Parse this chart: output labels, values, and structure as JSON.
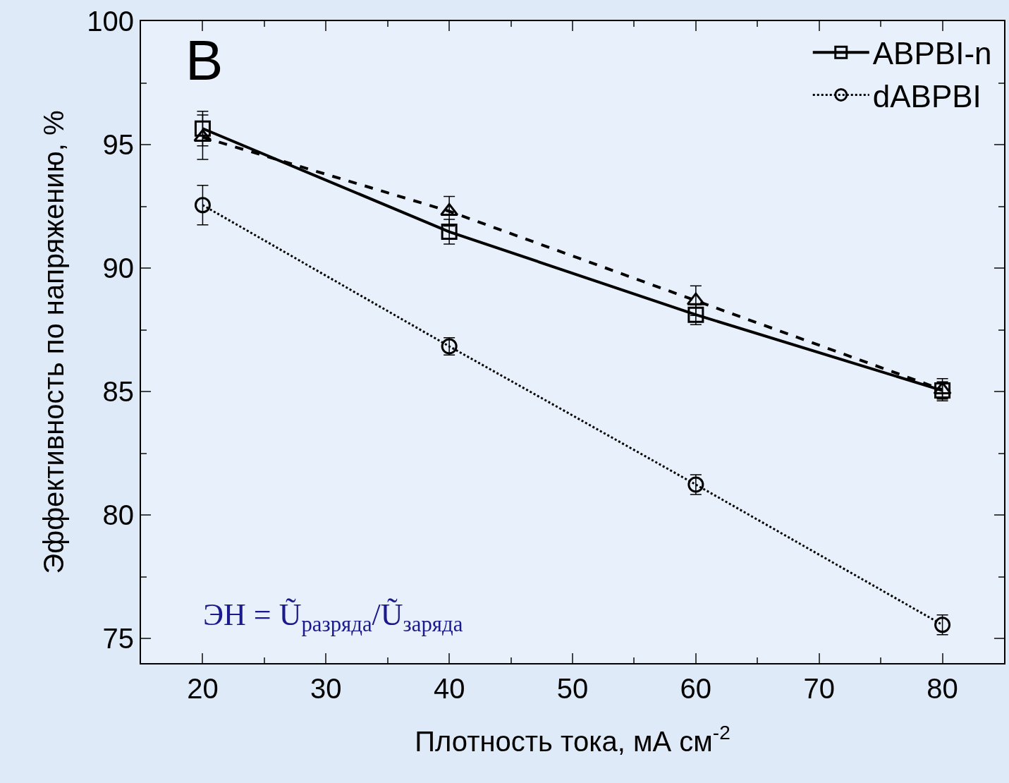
{
  "chart_data": {
    "type": "line",
    "xlabel": "Плотность тока, мА см$^{-2}$",
    "ylabel": "Эффективность по напряжению, %",
    "x": [
      20,
      40,
      60,
      80
    ],
    "series": [
      {
        "name": "ABPBI-n",
        "color": "#000000",
        "values": [
          95.65,
          91.47,
          88.11,
          85.04
        ],
        "errors": [
          0.7,
          0.5,
          0.4,
          0.35
        ],
        "marker": "square",
        "line_style": "solid"
      },
      {
        "name": "dABPBI",
        "color": "#000000",
        "values": [
          92.55,
          86.83,
          81.23,
          75.55
        ],
        "errors": [
          0.8,
          0.35,
          0.4,
          0.4
        ],
        "marker": "circle",
        "line_style": "dotted"
      },
      {
        "color": "#000000",
        "values": [
          95.3,
          92.3,
          88.68,
          85.07
        ],
        "errors": [
          0.9,
          0.6,
          0.6,
          0.45
        ],
        "marker": "triangle",
        "line_style": "dashed"
      }
    ],
    "xlim": [
      15,
      85
    ],
    "xticks": [
      20,
      30,
      40,
      50,
      60,
      70,
      80
    ],
    "ylim": [
      74,
      100
    ],
    "yticks": [
      75,
      80,
      85,
      90,
      95,
      100
    ],
    "grid": false,
    "legend": "top right",
    "annotations": [
      "B",
      "ЭН = Ũ$_{разряда}$/Ũ$_{заряда}$"
    ]
  }
}
